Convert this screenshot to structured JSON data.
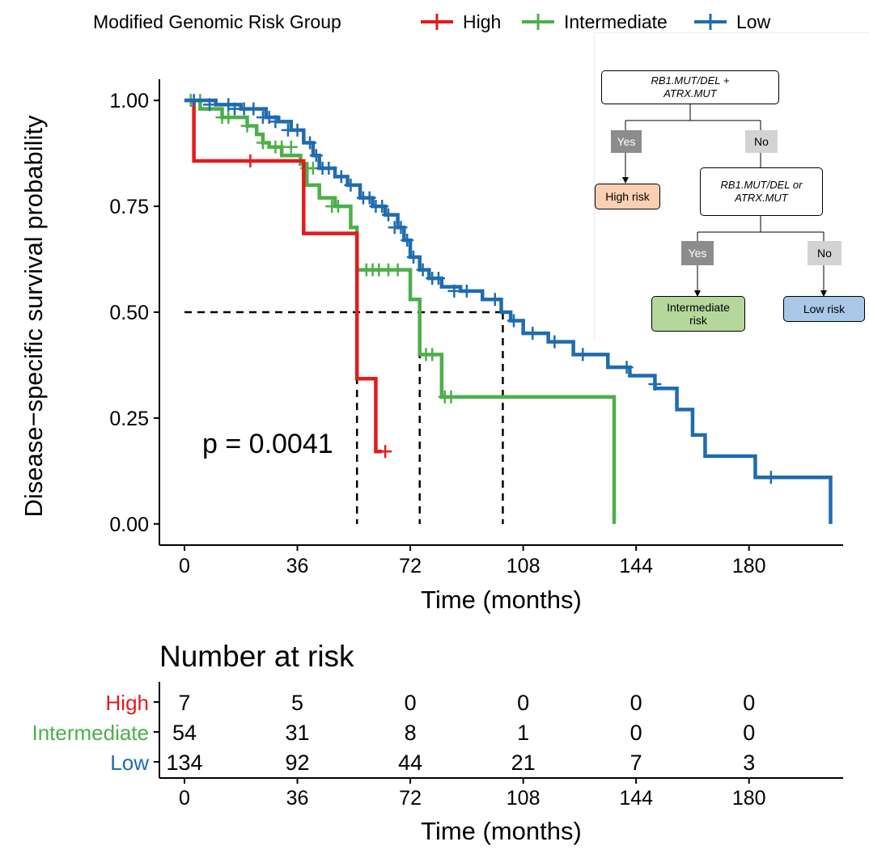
{
  "legend": {
    "title": "Modified Genomic   Risk   Group",
    "items": [
      {
        "label": "High",
        "color": "#e41a1c"
      },
      {
        "label": "Intermediate",
        "color": "#4daf4a"
      },
      {
        "label": "Low",
        "color": "#1f6bb0"
      }
    ]
  },
  "decision_tree": {
    "root": "RB1.MUT/DEL +\nATRX.MUT",
    "yes1": "Yes",
    "no1": "No",
    "high": "High risk",
    "second": "RB1.MUT/DEL or\nATRX.MUT",
    "yes2": "Yes",
    "no2": "No",
    "intermediate": "Intermediate\nrisk",
    "low": "Low risk",
    "colors": {
      "high": "#fbcfb3",
      "intermediate": "#b5d79b",
      "low": "#a9c8e8",
      "yes": "#8c8c8c",
      "no": "#d3d3d3"
    }
  },
  "chart_data": [
    {
      "type": "line",
      "subtype": "kaplan-meier",
      "xlabel": "Time (months)",
      "ylabel": "Disease−specific survival probability",
      "xlim": [
        -8,
        210
      ],
      "ylim": [
        -0.05,
        1.05
      ],
      "xticks": [
        "0",
        "36",
        "72",
        "108",
        "144",
        "180"
      ],
      "xtick_values": [
        0,
        36,
        72,
        108,
        144,
        180
      ],
      "yticks": [
        "0.00",
        "0.25",
        "0.50",
        "0.75",
        "1.00"
      ],
      "ytick_values": [
        0,
        0.25,
        0.5,
        0.75,
        1.0
      ],
      "annotation": "p = 0.0041",
      "median_line": {
        "y": 0.5,
        "x_values": [
          55,
          75,
          101.5
        ]
      },
      "series": [
        {
          "name": "High",
          "color": "#e41a1c",
          "x": [
            0,
            3,
            38,
            55,
            61,
            63
          ],
          "y": [
            1.0,
            0.857,
            0.686,
            0.343,
            0.171,
            0.171
          ],
          "censor_x": [
            21,
            64
          ],
          "censor_y": [
            0.857,
            0.171
          ]
        },
        {
          "name": "Intermediate",
          "color": "#4daf4a",
          "x": [
            0,
            5,
            12,
            20,
            23,
            25,
            27,
            31,
            35,
            37,
            39,
            43,
            48,
            51,
            53,
            55,
            58,
            64,
            70,
            72,
            75,
            82,
            86,
            88,
            96,
            108,
            120,
            136,
            137
          ],
          "y": [
            1.0,
            0.98,
            0.96,
            0.94,
            0.92,
            0.9,
            0.89,
            0.87,
            0.87,
            0.85,
            0.8,
            0.77,
            0.75,
            0.75,
            0.7,
            0.6,
            0.6,
            0.6,
            0.6,
            0.53,
            0.4,
            0.3,
            0.3,
            0.3,
            0.3,
            0.3,
            0.3,
            0.3,
            0.0
          ],
          "censor_x": [
            2,
            5,
            12,
            14,
            20,
            25,
            29,
            31,
            34,
            39,
            41,
            47,
            49,
            58,
            60,
            62,
            65,
            68,
            77,
            79,
            83,
            85
          ],
          "censor_y": [
            1.0,
            1.0,
            0.96,
            0.96,
            0.94,
            0.9,
            0.89,
            0.89,
            0.89,
            0.84,
            0.84,
            0.75,
            0.75,
            0.6,
            0.6,
            0.6,
            0.6,
            0.6,
            0.4,
            0.4,
            0.3,
            0.3
          ]
        },
        {
          "name": "Low",
          "color": "#1f6bb0",
          "x": [
            0,
            10,
            18,
            26,
            30,
            34,
            38,
            41,
            43,
            48,
            52,
            56,
            60,
            64,
            68,
            70,
            72,
            75,
            78,
            82,
            88,
            95,
            101,
            104,
            108,
            116,
            124,
            135,
            142,
            150,
            157,
            162,
            166,
            174,
            182,
            193,
            200,
            206
          ],
          "y": [
            1.0,
            0.99,
            0.98,
            0.96,
            0.95,
            0.93,
            0.9,
            0.87,
            0.84,
            0.82,
            0.8,
            0.77,
            0.75,
            0.73,
            0.7,
            0.67,
            0.63,
            0.6,
            0.58,
            0.56,
            0.55,
            0.53,
            0.5,
            0.48,
            0.45,
            0.43,
            0.4,
            0.37,
            0.35,
            0.32,
            0.27,
            0.21,
            0.16,
            0.16,
            0.11,
            0.11,
            0.11,
            0.0
          ],
          "censor_x": [
            3,
            8,
            14,
            16,
            19,
            22,
            25,
            27,
            29,
            33,
            36,
            40,
            42,
            44,
            46,
            50,
            53,
            57,
            59,
            61,
            63,
            65,
            67,
            69,
            71,
            73,
            76,
            79,
            81,
            86,
            90,
            99,
            105,
            111,
            118,
            127,
            141,
            150,
            187
          ],
          "censor_y": [
            1.0,
            0.99,
            0.99,
            0.98,
            0.98,
            0.98,
            0.96,
            0.96,
            0.95,
            0.93,
            0.93,
            0.9,
            0.87,
            0.84,
            0.84,
            0.82,
            0.8,
            0.77,
            0.77,
            0.75,
            0.75,
            0.73,
            0.7,
            0.7,
            0.67,
            0.63,
            0.6,
            0.58,
            0.58,
            0.55,
            0.55,
            0.53,
            0.48,
            0.45,
            0.43,
            0.4,
            0.37,
            0.33,
            0.11
          ]
        }
      ]
    },
    {
      "type": "table",
      "title": "Number at risk",
      "xlabel": "Time (months)",
      "xticks": [
        "0",
        "36",
        "72",
        "108",
        "144",
        "180"
      ],
      "rows": [
        {
          "label": "High",
          "color": "#e41a1c",
          "values": [
            "7",
            "5",
            "0",
            "0",
            "0",
            "0"
          ]
        },
        {
          "label": "Intermediate",
          "color": "#4daf4a",
          "values": [
            "54",
            "31",
            "8",
            "1",
            "0",
            "0"
          ]
        },
        {
          "label": "Low",
          "color": "#1f6bb0",
          "values": [
            "134",
            "92",
            "44",
            "21",
            "7",
            "3"
          ]
        }
      ]
    }
  ]
}
